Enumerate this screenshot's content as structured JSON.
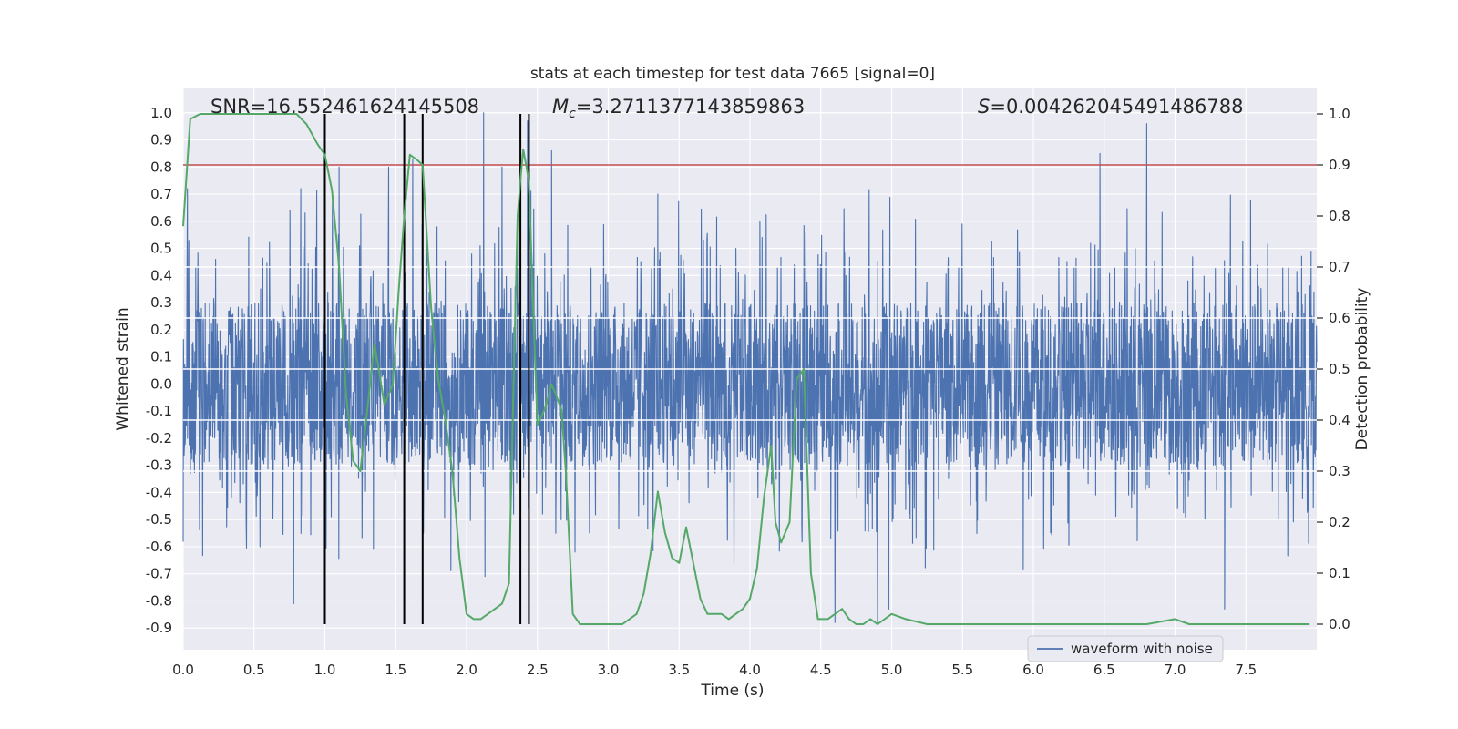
{
  "chart_data": {
    "type": "line",
    "title": "stats at each timestep for test data 7665 [signal=0]",
    "xlabel": "Time (s)",
    "ylabel_left": "Whitened strain",
    "ylabel_right": "Detection probability",
    "xlim": [
      0.0,
      8.0
    ],
    "ylim_left": [
      -0.98,
      1.09
    ],
    "ylim_right": [
      -0.05,
      1.05
    ],
    "x_ticks": [
      "0.0",
      "0.5",
      "1.0",
      "1.5",
      "2.0",
      "2.5",
      "3.0",
      "3.5",
      "4.0",
      "4.5",
      "5.0",
      "5.5",
      "6.0",
      "6.5",
      "7.0",
      "7.5"
    ],
    "y_ticks_left": [
      "1.0",
      "0.9",
      "0.8",
      "0.7",
      "0.6",
      "0.5",
      "0.4",
      "0.3",
      "0.2",
      "0.1",
      "0.0",
      "-0.1",
      "-0.2",
      "-0.3",
      "-0.4",
      "-0.5",
      "-0.6",
      "-0.7",
      "-0.8",
      "-0.9"
    ],
    "y_ticks_right": [
      "1.0",
      "0.9",
      "0.8",
      "0.7",
      "0.6",
      "0.5",
      "0.4",
      "0.3",
      "0.2",
      "0.1",
      "0.0"
    ],
    "annotations": {
      "snr_prefix": "SNR",
      "snr_value": "=16.552461624145508",
      "mc_symbol": "M",
      "mc_subscript": "c",
      "mc_value": "=3.2711377143859863",
      "s_symbol": "S",
      "s_value": "=0.004262045491486788"
    },
    "threshold": {
      "axis": "right",
      "value": 0.9,
      "color": "#c44e52"
    },
    "vlines": {
      "x": [
        1.0,
        1.56,
        1.69,
        2.38,
        2.44
      ],
      "y_range_right": [
        0.0,
        1.0
      ],
      "color": "#000000"
    },
    "series": [
      {
        "name": "waveform with noise",
        "axis": "left",
        "color": "#4c72b0",
        "description": "dense whitened strain noise, ~3600 samples, core amplitude about ±0.3 with spikes",
        "core_amplitude": 0.3,
        "peak_spikes": [
          {
            "x": 0.03,
            "y": 0.72
          },
          {
            "x": 0.83,
            "y": 0.72
          },
          {
            "x": 0.78,
            "y": -0.81
          },
          {
            "x": 1.0,
            "y": 0.85
          },
          {
            "x": 1.1,
            "y": 0.8
          },
          {
            "x": 1.45,
            "y": 0.8
          },
          {
            "x": 1.62,
            "y": 0.83
          },
          {
            "x": 2.12,
            "y": 1.0
          },
          {
            "x": 2.25,
            "y": 0.8
          },
          {
            "x": 2.43,
            "y": 0.97
          },
          {
            "x": 2.6,
            "y": 0.86
          },
          {
            "x": 2.13,
            "y": -0.71
          },
          {
            "x": 3.35,
            "y": 0.7
          },
          {
            "x": 4.6,
            "y": -0.88
          },
          {
            "x": 4.9,
            "y": -0.88
          },
          {
            "x": 4.98,
            "y": -0.83
          },
          {
            "x": 6.47,
            "y": 0.85
          },
          {
            "x": 6.8,
            "y": 0.96
          },
          {
            "x": 7.35,
            "y": -0.83
          }
        ],
        "legend_position": "lower-right"
      },
      {
        "name": "detection probability",
        "axis": "right",
        "color": "#55a868",
        "x": [
          0.0,
          0.05,
          0.12,
          0.2,
          0.3,
          0.4,
          0.5,
          0.6,
          0.7,
          0.8,
          0.87,
          0.95,
          1.0,
          1.05,
          1.1,
          1.15,
          1.2,
          1.25,
          1.3,
          1.35,
          1.38,
          1.42,
          1.48,
          1.52,
          1.56,
          1.6,
          1.65,
          1.69,
          1.75,
          1.8,
          1.85,
          1.9,
          1.95,
          2.0,
          2.05,
          2.1,
          2.15,
          2.2,
          2.25,
          2.3,
          2.33,
          2.36,
          2.38,
          2.4,
          2.44,
          2.47,
          2.5,
          2.55,
          2.6,
          2.63,
          2.67,
          2.7,
          2.75,
          2.8,
          2.9,
          3.0,
          3.1,
          3.15,
          3.2,
          3.25,
          3.3,
          3.35,
          3.4,
          3.45,
          3.5,
          3.55,
          3.6,
          3.65,
          3.7,
          3.75,
          3.8,
          3.85,
          3.9,
          3.95,
          4.0,
          4.05,
          4.1,
          4.15,
          4.18,
          4.22,
          4.28,
          4.33,
          4.38,
          4.43,
          4.48,
          4.55,
          4.6,
          4.65,
          4.7,
          4.75,
          4.8,
          4.85,
          4.9,
          5.0,
          5.1,
          5.25,
          5.4,
          5.5,
          5.6,
          5.7,
          5.8,
          6.0,
          6.5,
          6.8,
          7.0,
          7.1,
          7.2,
          7.5,
          7.7,
          7.95
        ],
        "y": [
          0.78,
          0.99,
          1.0,
          1.0,
          1.0,
          1.0,
          1.0,
          1.0,
          1.0,
          1.0,
          0.98,
          0.94,
          0.92,
          0.85,
          0.7,
          0.45,
          0.32,
          0.3,
          0.42,
          0.55,
          0.5,
          0.43,
          0.47,
          0.65,
          0.8,
          0.92,
          0.91,
          0.9,
          0.62,
          0.48,
          0.4,
          0.3,
          0.13,
          0.02,
          0.01,
          0.01,
          0.02,
          0.03,
          0.04,
          0.08,
          0.45,
          0.8,
          0.87,
          0.93,
          0.87,
          0.62,
          0.39,
          0.42,
          0.47,
          0.45,
          0.42,
          0.3,
          0.02,
          0.0,
          0.0,
          0.0,
          0.0,
          0.01,
          0.02,
          0.06,
          0.14,
          0.26,
          0.18,
          0.13,
          0.12,
          0.19,
          0.12,
          0.05,
          0.02,
          0.02,
          0.02,
          0.01,
          0.02,
          0.03,
          0.05,
          0.11,
          0.25,
          0.35,
          0.2,
          0.16,
          0.2,
          0.48,
          0.5,
          0.1,
          0.01,
          0.01,
          0.02,
          0.03,
          0.01,
          0.0,
          0.0,
          0.01,
          0.0,
          0.02,
          0.01,
          0.0,
          0.0,
          0.0,
          0.0,
          0.0,
          0.0,
          0.0,
          0.0,
          0.0,
          0.01,
          0.0,
          0.0,
          0.0,
          0.0,
          0.0
        ]
      }
    ]
  }
}
